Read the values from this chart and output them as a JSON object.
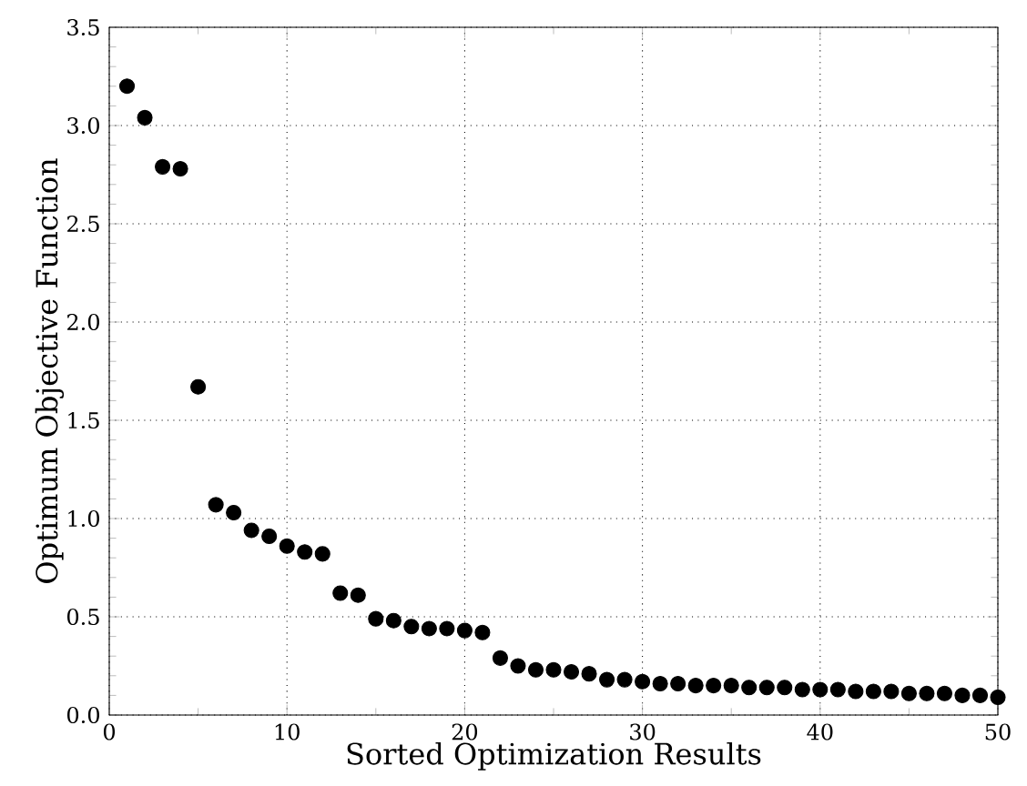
{
  "chart_data": {
    "type": "scatter",
    "xlabel": "Sorted Optimization Results",
    "ylabel": "Optimum Objective Function",
    "x": [
      1,
      2,
      3,
      4,
      5,
      6,
      7,
      8,
      9,
      10,
      11,
      12,
      13,
      14,
      15,
      16,
      17,
      18,
      19,
      20,
      21,
      22,
      23,
      24,
      25,
      26,
      27,
      28,
      29,
      30,
      31,
      32,
      33,
      34,
      35,
      36,
      37,
      38,
      39,
      40,
      41,
      42,
      43,
      44,
      45,
      46,
      47,
      48,
      49,
      50
    ],
    "series": [
      {
        "color": "#000000",
        "values": [
          3.2,
          3.04,
          2.79,
          2.78,
          1.67,
          1.07,
          1.03,
          0.94,
          0.91,
          0.86,
          0.83,
          0.82,
          0.62,
          0.61,
          0.49,
          0.48,
          0.45,
          0.44,
          0.44,
          0.43,
          0.42,
          0.29,
          0.25,
          0.23,
          0.23,
          0.22,
          0.21,
          0.18,
          0.18,
          0.17,
          0.16,
          0.16,
          0.15,
          0.15,
          0.15,
          0.14,
          0.14,
          0.14,
          0.13,
          0.13,
          0.13,
          0.12,
          0.12,
          0.12,
          0.11,
          0.11,
          0.11,
          0.1,
          0.1,
          0.09
        ]
      }
    ],
    "xlim": [
      0,
      50
    ],
    "ylim": [
      0,
      3.5
    ],
    "xticks": [
      0,
      10,
      20,
      30,
      40,
      50
    ],
    "yticks": [
      {
        "value": 0,
        "label": "0.0"
      },
      {
        "value": 0.5,
        "label": "0.5"
      },
      {
        "value": 1,
        "label": "1.0"
      },
      {
        "value": 1.5,
        "label": "1.5"
      },
      {
        "value": 2,
        "label": "2.0"
      },
      {
        "value": 2.5,
        "label": "2.5"
      },
      {
        "value": 3,
        "label": "3.0"
      },
      {
        "value": 3.5,
        "label": "3.5"
      }
    ],
    "grid": true,
    "marker": "circle"
  }
}
